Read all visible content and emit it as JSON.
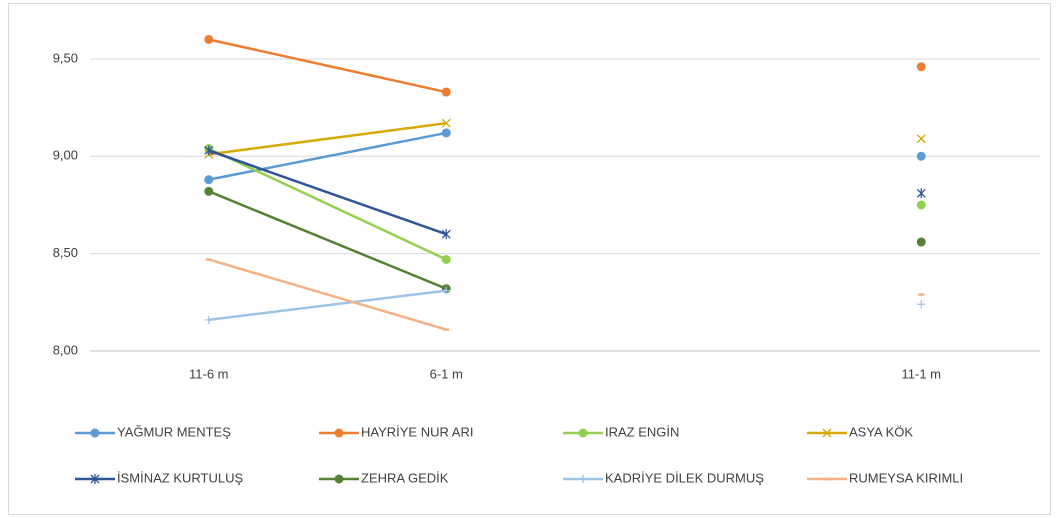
{
  "chart_data": {
    "type": "line",
    "categories": [
      "11-6 m",
      "6-1 m",
      null,
      "11-1 m"
    ],
    "ylim": [
      8,
      9.7
    ],
    "yticks": [
      {
        "value": 8,
        "label": "8,00"
      },
      {
        "value": 8.5,
        "label": "8,50"
      },
      {
        "value": 9,
        "label": "9,00"
      },
      {
        "value": 9.5,
        "label": "9,50"
      }
    ],
    "grid": true,
    "legend": "bottom",
    "series": [
      {
        "name": "YAĞMUR MENTEŞ",
        "color": "#5b9bd5",
        "marker": "circle",
        "values": [
          8.88,
          9.12,
          null,
          9.0
        ]
      },
      {
        "name": "HAYRİYE NUR ARI",
        "color": "#ed7d31",
        "marker": "circle",
        "values": [
          9.6,
          9.33,
          null,
          9.46
        ]
      },
      {
        "name": "IRAZ ENGİN",
        "color": "#92d050",
        "marker": "circle",
        "values": [
          9.04,
          8.47,
          null,
          8.75
        ]
      },
      {
        "name": "ASYA KÖK",
        "color": "#d6a800",
        "marker": "x",
        "values": [
          9.01,
          9.17,
          null,
          9.09
        ]
      },
      {
        "name": "İSMİNAZ KURTULUŞ",
        "color": "#2f5597",
        "marker": "star",
        "values": [
          9.03,
          8.6,
          null,
          8.81
        ]
      },
      {
        "name": "ZEHRA GEDİK",
        "color": "#548235",
        "marker": "circle",
        "values": [
          8.82,
          8.32,
          null,
          8.56
        ]
      },
      {
        "name": "KADRİYE DİLEK DURMUŞ",
        "color": "#9dc3e6",
        "marker": "plus",
        "values": [
          8.16,
          8.31,
          null,
          8.24
        ]
      },
      {
        "name": "RUMEYSA KIRIMLI",
        "color": "#f4b183",
        "marker": "dash",
        "values": [
          8.47,
          8.11,
          null,
          8.29
        ]
      }
    ]
  }
}
